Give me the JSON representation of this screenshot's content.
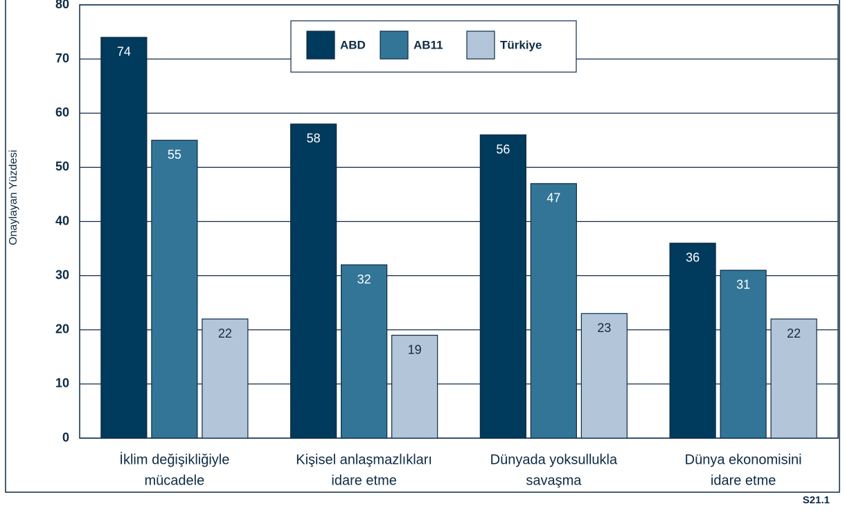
{
  "chart_data": {
    "type": "bar",
    "categories": [
      [
        "İklim değişikliğiyle",
        "mücadele"
      ],
      [
        "Kişisel anlaşmazlıkları",
        "idare etme"
      ],
      [
        "Dünyada yoksullukla",
        "savaşma"
      ],
      [
        "Dünya ekonomisini",
        "idare etme"
      ]
    ],
    "series": [
      {
        "name": "ABD",
        "color": "#003a5c",
        "label_color": "#ffffff",
        "values": [
          74,
          58,
          56,
          36
        ]
      },
      {
        "name": "AB11",
        "color": "#337597",
        "label_color": "#ffffff",
        "values": [
          55,
          32,
          47,
          31
        ]
      },
      {
        "name": "Türkiye",
        "color": "#b3c6d9",
        "label_color": "#0d2a45",
        "values": [
          22,
          19,
          23,
          22
        ]
      }
    ],
    "ylabel": "Onaylayan Yüzdesi",
    "note": "S21.1",
    "ylim": [
      0,
      80
    ],
    "yticks": [
      0,
      10,
      20,
      30,
      40,
      50,
      60,
      70,
      80
    ],
    "grid": true,
    "legend": "top"
  }
}
